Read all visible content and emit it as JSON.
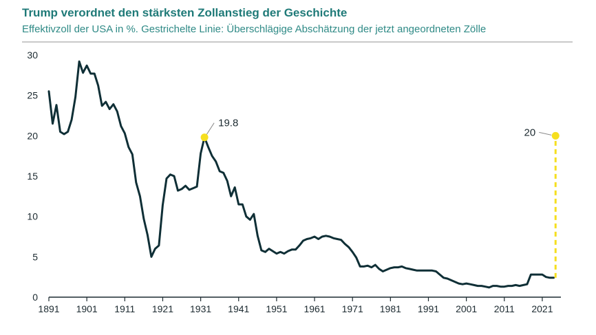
{
  "header": {
    "title": "Trump verordnet den stärksten Zollanstieg der Geschichte",
    "subtitle": "Effektivzoll der USA in %. Gestrichelte Linie: Überschlägige Abschätzung der jetzt angeordneten Zölle"
  },
  "colors": {
    "line": "#0f2f36",
    "accent": "#f6df1f",
    "title": "#1f7a78",
    "axis": "#1c2a30"
  },
  "chart_data": {
    "type": "line",
    "title": "Trump verordnet den stärksten Zollanstieg der Geschichte",
    "subtitle": "Effektivzoll der USA in %. Gestrichelte Linie: Überschlägige Abschätzung der jetzt angeordneten Zölle",
    "xlabel": "",
    "ylabel": "",
    "xlim": [
      1891,
      2025
    ],
    "ylim": [
      0,
      30
    ],
    "yticks": [
      0,
      5,
      10,
      15,
      20,
      25,
      30
    ],
    "xticks": [
      1891,
      1901,
      1911,
      1921,
      1931,
      1941,
      1951,
      1961,
      1971,
      1981,
      1991,
      2001,
      2011,
      2021
    ],
    "grid": false,
    "series": [
      {
        "x": [
          1891,
          1892,
          1893,
          1894,
          1895,
          1896,
          1897,
          1898,
          1899,
          1900,
          1901,
          1902,
          1903,
          1904,
          1905,
          1906,
          1907,
          1908,
          1909,
          1910,
          1911,
          1912,
          1913,
          1914,
          1915,
          1916,
          1917,
          1918,
          1919,
          1920,
          1921,
          1922,
          1923,
          1924,
          1925,
          1926,
          1927,
          1928,
          1929,
          1930,
          1931,
          1932,
          1933,
          1934,
          1935,
          1936,
          1937,
          1938,
          1939,
          1940,
          1941,
          1942,
          1943,
          1944,
          1945,
          1946,
          1947,
          1948,
          1949,
          1950,
          1951,
          1952,
          1953,
          1954,
          1955,
          1956,
          1957,
          1958,
          1959,
          1960,
          1961,
          1962,
          1963,
          1964,
          1965,
          1966,
          1967,
          1968,
          1969,
          1970,
          1971,
          1972,
          1973,
          1974,
          1975,
          1976,
          1977,
          1978,
          1979,
          1980,
          1981,
          1982,
          1983,
          1984,
          1985,
          1986,
          1987,
          1988,
          1989,
          1990,
          1991,
          1992,
          1993,
          1994,
          1995,
          1996,
          1997,
          1998,
          1999,
          2000,
          2001,
          2002,
          2003,
          2004,
          2005,
          2006,
          2007,
          2008,
          2009,
          2010,
          2011,
          2012,
          2013,
          2014,
          2015,
          2016,
          2017,
          2018,
          2019,
          2020,
          2021,
          2022,
          2023,
          2024
        ],
        "values": [
          25.5,
          21.5,
          23.8,
          20.5,
          20.2,
          20.5,
          22.0,
          24.8,
          29.2,
          27.8,
          28.7,
          27.7,
          27.7,
          26.2,
          23.7,
          24.2,
          23.3,
          23.9,
          23.0,
          21.2,
          20.3,
          18.6,
          17.7,
          14.2,
          12.5,
          9.7,
          7.7,
          5.0,
          6.0,
          6.4,
          11.4,
          14.7,
          15.2,
          15.0,
          13.2,
          13.4,
          13.8,
          13.3,
          13.5,
          13.7,
          17.8,
          19.8,
          18.6,
          17.5,
          16.8,
          15.6,
          15.4,
          14.4,
          12.5,
          13.6,
          11.5,
          11.5,
          10.0,
          9.6,
          10.3,
          7.6,
          5.8,
          5.6,
          6.0,
          5.7,
          5.4,
          5.6,
          5.4,
          5.7,
          5.9,
          5.9,
          6.4,
          7.0,
          7.2,
          7.3,
          7.5,
          7.2,
          7.5,
          7.6,
          7.5,
          7.3,
          7.2,
          7.1,
          6.6,
          6.2,
          5.6,
          4.9,
          3.8,
          3.8,
          3.9,
          3.7,
          4.0,
          3.5,
          3.2,
          3.4,
          3.6,
          3.7,
          3.7,
          3.8,
          3.6,
          3.5,
          3.4,
          3.3,
          3.3,
          3.3,
          3.3,
          3.3,
          3.2,
          2.8,
          2.4,
          2.3,
          2.1,
          1.9,
          1.7,
          1.6,
          1.7,
          1.6,
          1.5,
          1.4,
          1.4,
          1.3,
          1.2,
          1.4,
          1.4,
          1.3,
          1.3,
          1.4,
          1.4,
          1.5,
          1.4,
          1.5,
          1.6,
          2.8,
          2.8,
          2.8,
          2.8,
          2.5,
          2.4,
          2.4
        ]
      }
    ],
    "projection": {
      "x": 2024.5,
      "from": 2.4,
      "to": 20,
      "style": "dashed"
    },
    "annotations": [
      {
        "x": 1932,
        "y": 19.8,
        "label": "19.8"
      },
      {
        "x": 2024.5,
        "y": 20,
        "label": "20"
      }
    ]
  }
}
